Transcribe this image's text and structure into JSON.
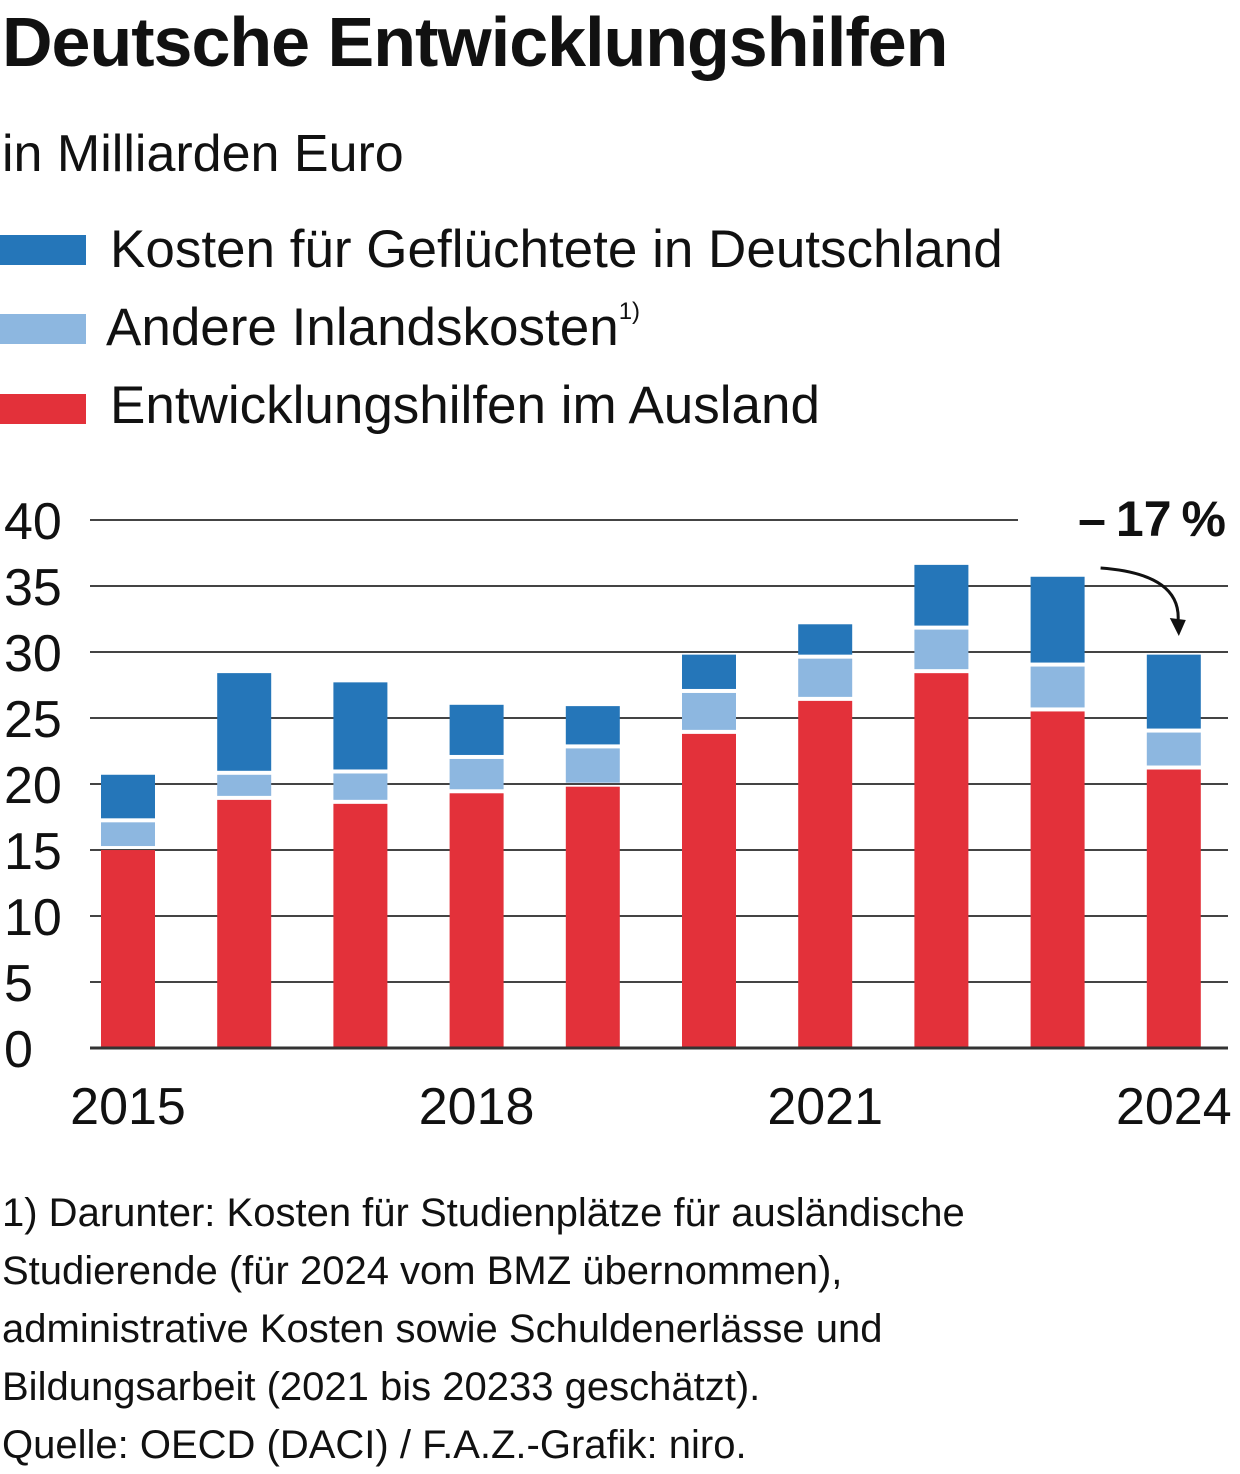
{
  "title": "Deutsche Entwicklungshilfen",
  "subtitle": "in Milliarden Euro",
  "colors": {
    "refugees": "#2576b9",
    "other_domestic": "#8db7e0",
    "abroad": "#e3313a",
    "grid": "#444444"
  },
  "legend": [
    {
      "label": "Kosten für Geflüchtete in Deutschland",
      "sup": "",
      "color": "#2576b9"
    },
    {
      "label": "Andere Inlandskosten",
      "sup": "1)",
      "color": "#8db7e0"
    },
    {
      "label": "Entwicklungshilfen im Ausland",
      "sup": "",
      "color": "#e3313a"
    }
  ],
  "chart_data": {
    "type": "bar",
    "stacked": true,
    "x": [
      2015,
      2016,
      2017,
      2018,
      2019,
      2020,
      2021,
      2022,
      2023,
      2024
    ],
    "x_tick_labels": [
      "2015",
      "2018",
      "2021",
      "2024"
    ],
    "x_tick_years": [
      2015,
      2018,
      2021,
      2024
    ],
    "yticks": [
      0,
      5,
      10,
      15,
      20,
      25,
      30,
      35,
      40
    ],
    "ylim": [
      0,
      40
    ],
    "grid": true,
    "series": [
      {
        "name": "Entwicklungshilfen im Ausland",
        "color": "#e3313a",
        "values": [
          15.3,
          19.1,
          18.8,
          19.6,
          20.1,
          24.1,
          26.6,
          28.7,
          25.8,
          21.4
        ]
      },
      {
        "name": "Andere Inlandskosten",
        "color": "#8db7e0",
        "values": [
          2.1,
          1.9,
          2.3,
          2.6,
          2.9,
          3.1,
          3.2,
          3.3,
          3.4,
          2.8
        ]
      },
      {
        "name": "Kosten für Geflüchtete in Deutschland",
        "color": "#2576b9",
        "values": [
          3.3,
          7.4,
          6.6,
          3.8,
          2.9,
          2.6,
          2.3,
          4.6,
          6.5,
          5.6
        ]
      }
    ],
    "annotation": {
      "text": "– 17 %",
      "from_year": 2023,
      "to_year": 2024
    }
  },
  "footnote_lines": [
    "1) Darunter: Kosten für Studienplätze für ausländische",
    "Studierende (für 2024 vom BMZ übernommen),",
    "administrative Kosten sowie Schuldenerlässe und",
    "Bildungsarbeit (2021 bis 20233 geschätzt).",
    "Quelle: OECD (DACI) / F.A.Z.-Grafik: niro."
  ]
}
